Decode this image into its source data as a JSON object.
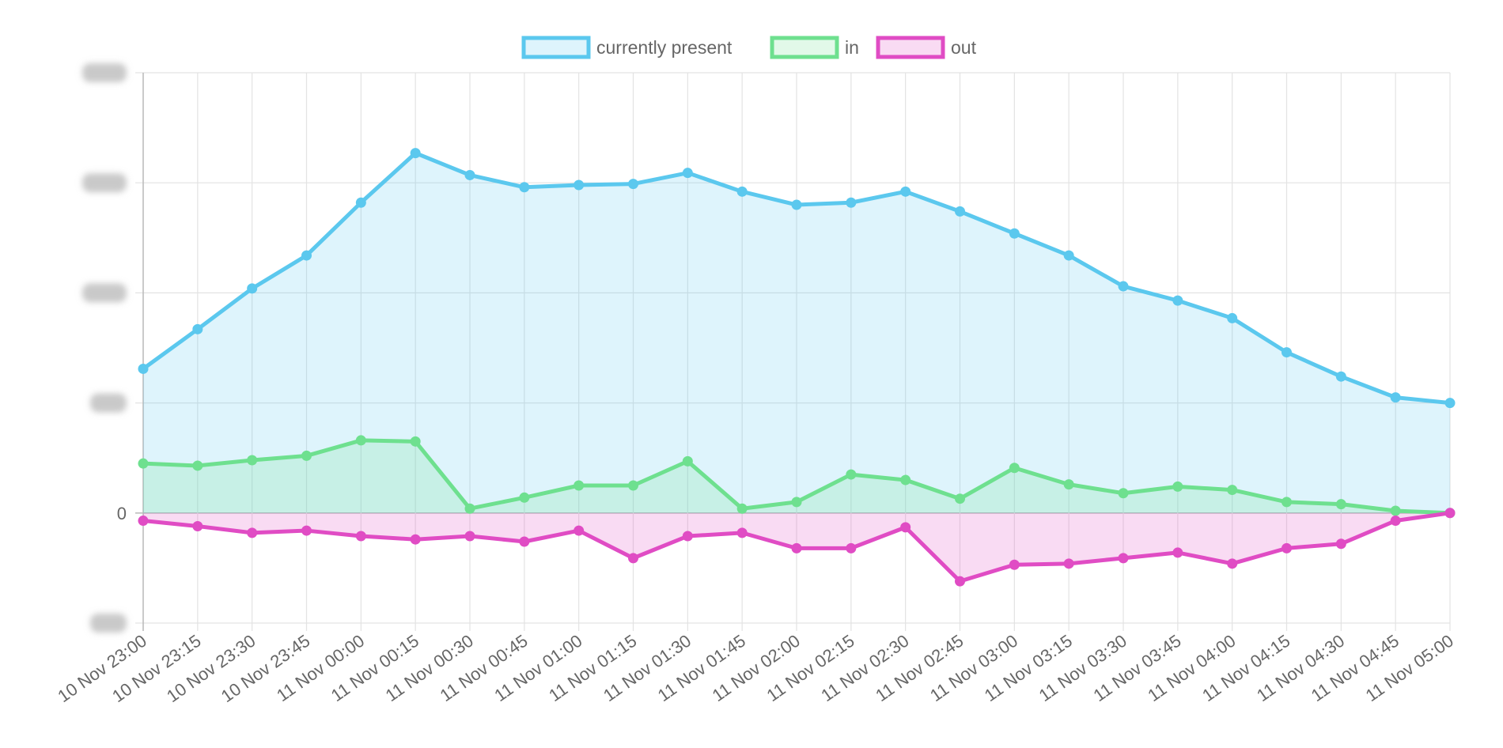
{
  "chart_data": {
    "type": "area",
    "title": "",
    "xlabel": "",
    "ylabel": "",
    "legend_position": "top-center",
    "grid": true,
    "categories": [
      "10 Nov 23:00",
      "10 Nov 23:15",
      "10 Nov 23:30",
      "10 Nov 23:45",
      "11 Nov 00:00",
      "11 Nov 00:15",
      "11 Nov 00:30",
      "11 Nov 00:45",
      "11 Nov 01:00",
      "11 Nov 01:15",
      "11 Nov 01:30",
      "11 Nov 01:45",
      "11 Nov 02:00",
      "11 Nov 02:15",
      "11 Nov 02:30",
      "11 Nov 02:45",
      "11 Nov 03:00",
      "11 Nov 03:15",
      "11 Nov 03:30",
      "11 Nov 03:45",
      "11 Nov 04:00",
      "11 Nov 04:15",
      "11 Nov 04:30",
      "11 Nov 04:45",
      "11 Nov 05:00"
    ],
    "ylim": [
      -1,
      4
    ],
    "y_ticks": [
      {
        "value": 4,
        "label": "",
        "obscured": true
      },
      {
        "value": 3,
        "label": "",
        "obscured": true
      },
      {
        "value": 2,
        "label": "",
        "obscured": true
      },
      {
        "value": 1,
        "label": "",
        "obscured": true
      },
      {
        "value": 0,
        "label": "0",
        "obscured": false
      },
      {
        "value": -1,
        "label": "",
        "obscured": true
      }
    ],
    "series": [
      {
        "name": "currently present",
        "color": "#5bc8ee",
        "fill": "rgba(91,200,238,0.20)",
        "values": [
          1.31,
          1.67,
          2.04,
          2.34,
          2.82,
          3.27,
          3.07,
          2.96,
          2.98,
          2.99,
          3.09,
          2.92,
          2.8,
          2.82,
          2.92,
          2.74,
          2.54,
          2.34,
          2.06,
          1.93,
          1.77,
          1.46,
          1.24,
          1.05,
          1.0
        ]
      },
      {
        "name": "in",
        "color": "#6ee08f",
        "fill": "rgba(110,224,143,0.20)",
        "values": [
          0.45,
          0.43,
          0.48,
          0.52,
          0.66,
          0.65,
          0.04,
          0.14,
          0.25,
          0.25,
          0.47,
          0.04,
          0.1,
          0.35,
          0.3,
          0.13,
          0.41,
          0.26,
          0.18,
          0.24,
          0.21,
          0.1,
          0.08,
          0.02,
          0.0
        ]
      },
      {
        "name": "out",
        "color": "#e04cc4",
        "fill": "rgba(224,76,196,0.20)",
        "values": [
          -0.07,
          -0.12,
          -0.18,
          -0.16,
          -0.21,
          -0.24,
          -0.21,
          -0.26,
          -0.16,
          -0.41,
          -0.21,
          -0.18,
          -0.32,
          -0.32,
          -0.13,
          -0.62,
          -0.47,
          -0.46,
          -0.41,
          -0.36,
          -0.46,
          -0.32,
          -0.28,
          -0.07,
          0.0
        ]
      }
    ]
  }
}
